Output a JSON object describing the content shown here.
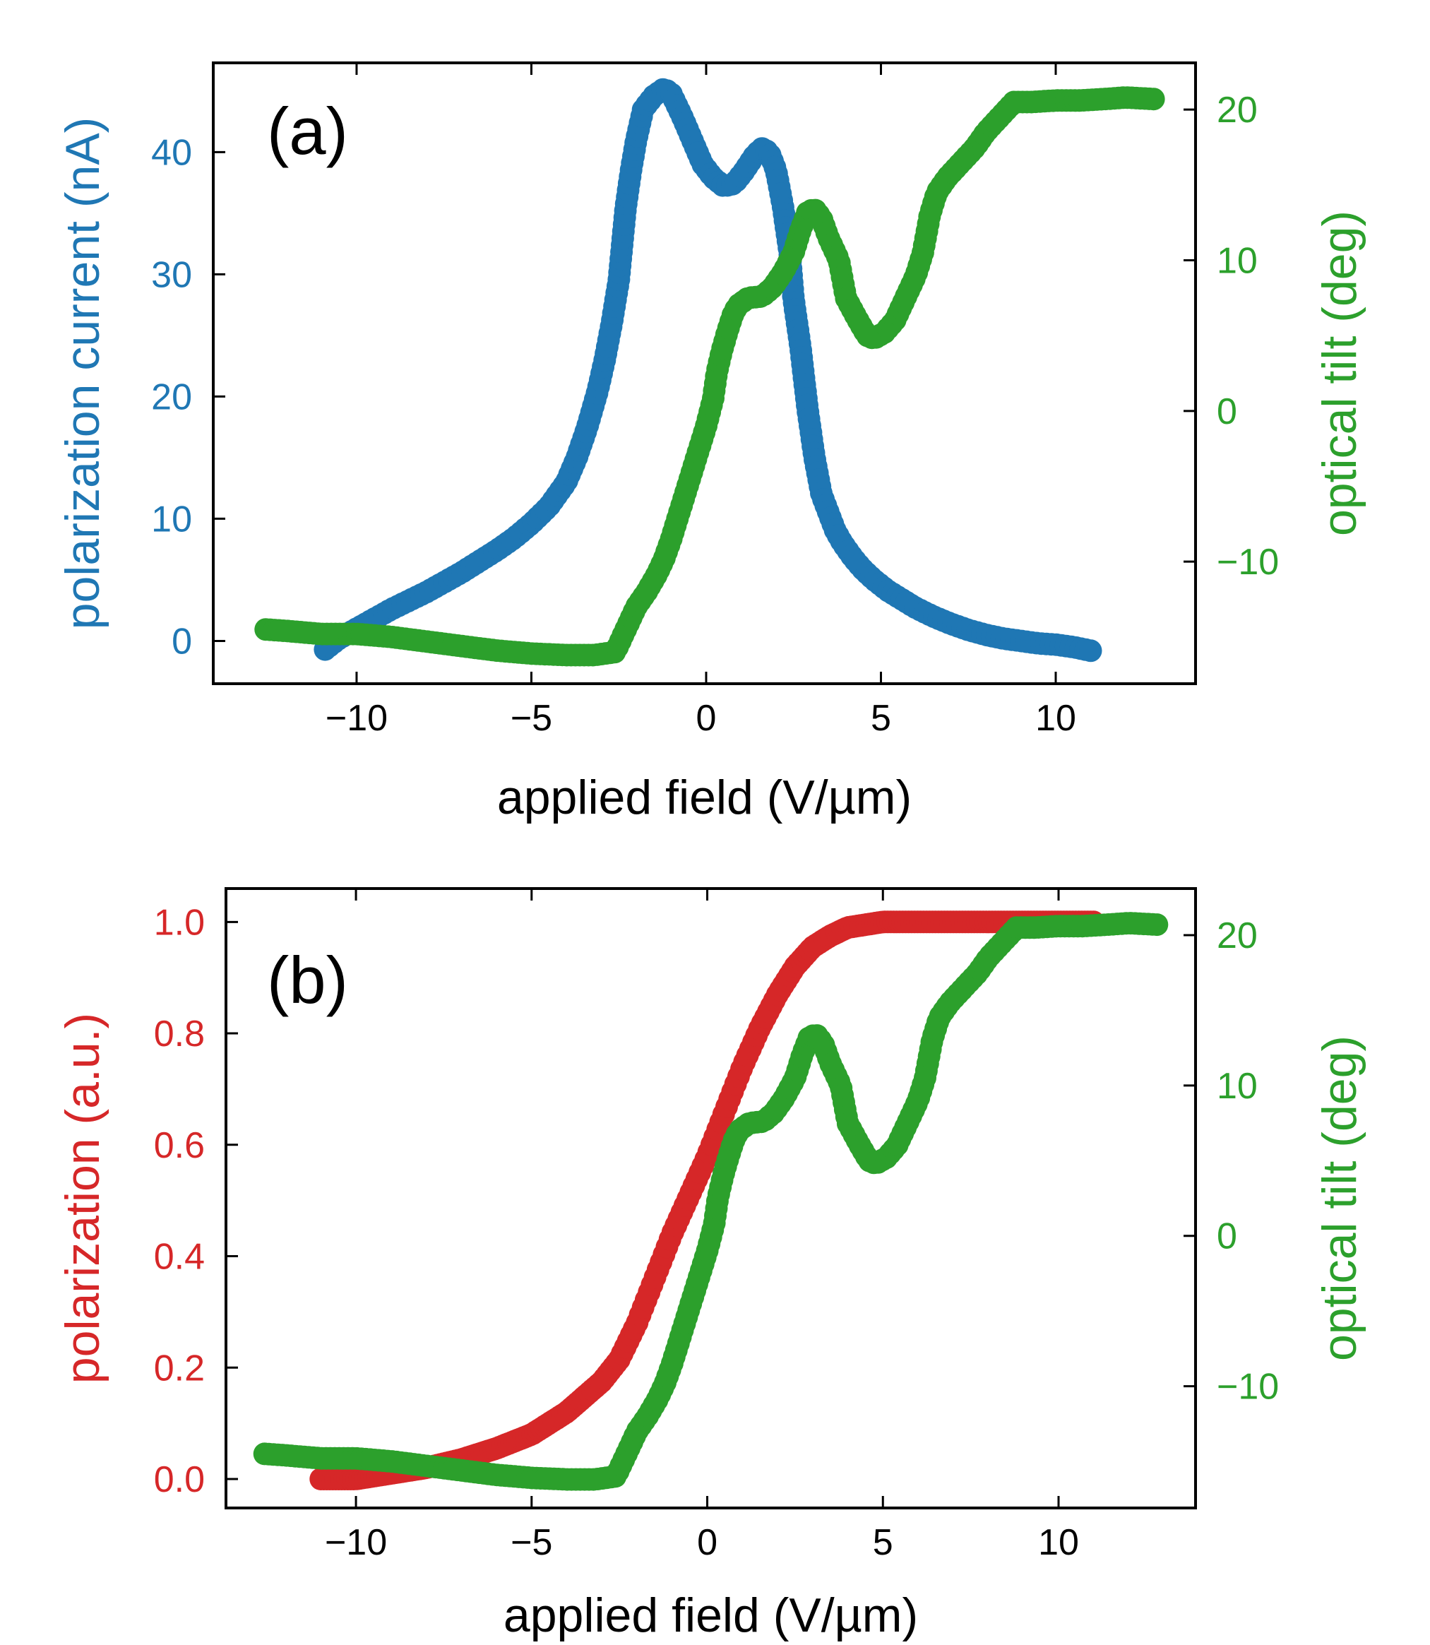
{
  "chart_data": [
    {
      "type": "scatter",
      "panel_label": "(a)",
      "xlabel": "applied field (V/µm)",
      "xlim": [
        -14.1,
        14.0
      ],
      "xticks": [
        -10,
        -5,
        0,
        5,
        10
      ],
      "xtick_labels": [
        "−10",
        "−5",
        "0",
        "5",
        "10"
      ],
      "left_axis": {
        "label": "polarization current (nA)",
        "color": "#1f77b4",
        "ylim": [
          -3.5,
          47.3
        ],
        "ticks": [
          0,
          10,
          20,
          30,
          40
        ],
        "tick_labels": [
          "0",
          "10",
          "20",
          "30",
          "40"
        ]
      },
      "right_axis": {
        "label": "optical tilt (deg)",
        "color": "#2ca02c",
        "ylim": [
          -18.1,
          23.1
        ],
        "ticks": [
          -10,
          0,
          10,
          20
        ],
        "tick_labels": [
          "−10",
          "0",
          "10",
          "20"
        ]
      },
      "series": [
        {
          "axis": "left",
          "color": "#1f77b4",
          "points": [
            [
              -10.9,
              -0.7
            ],
            [
              -10.5,
              0.2
            ],
            [
              -10,
              1.0
            ],
            [
              -9.5,
              1.8
            ],
            [
              -9,
              2.6
            ],
            [
              -8.5,
              3.3
            ],
            [
              -8,
              4.0
            ],
            [
              -7.5,
              4.8
            ],
            [
              -7,
              5.6
            ],
            [
              -6.5,
              6.5
            ],
            [
              -6,
              7.4
            ],
            [
              -5.5,
              8.4
            ],
            [
              -5,
              9.6
            ],
            [
              -4.5,
              11.0
            ],
            [
              -4,
              13.0
            ],
            [
              -3.7,
              15.0
            ],
            [
              -3.4,
              17.5
            ],
            [
              -3.1,
              20.5
            ],
            [
              -2.9,
              23.0
            ],
            [
              -2.7,
              26.0
            ],
            [
              -2.5,
              29.5
            ],
            [
              -2.4,
              32.5
            ],
            [
              -2.3,
              35.5
            ],
            [
              -2.15,
              38.5
            ],
            [
              -2.0,
              41.0
            ],
            [
              -1.8,
              43.5
            ],
            [
              -1.5,
              44.6
            ],
            [
              -1.2,
              45.2
            ],
            [
              -1.0,
              44.8
            ],
            [
              -0.7,
              43.0
            ],
            [
              -0.4,
              41.0
            ],
            [
              -0.1,
              39.0
            ],
            [
              0.2,
              37.9
            ],
            [
              0.5,
              37.2
            ],
            [
              0.8,
              37.4
            ],
            [
              1.1,
              38.5
            ],
            [
              1.4,
              39.8
            ],
            [
              1.6,
              40.3
            ],
            [
              1.8,
              40.0
            ],
            [
              2.0,
              38.5
            ],
            [
              2.2,
              35.5
            ],
            [
              2.4,
              31.5
            ],
            [
              2.5,
              28.0
            ],
            [
              2.6,
              26.0
            ],
            [
              2.7,
              24.0
            ],
            [
              2.8,
              21.5
            ],
            [
              2.9,
              19.0
            ],
            [
              3.0,
              17.0
            ],
            [
              3.1,
              15.0
            ],
            [
              3.2,
              13.5
            ],
            [
              3.3,
              12.0
            ],
            [
              3.5,
              10.5
            ],
            [
              3.7,
              9.0
            ],
            [
              3.9,
              8.0
            ],
            [
              4.2,
              6.8
            ],
            [
              4.5,
              5.8
            ],
            [
              4.8,
              5.0
            ],
            [
              5.2,
              4.1
            ],
            [
              5.6,
              3.4
            ],
            [
              6,
              2.7
            ],
            [
              6.5,
              2.0
            ],
            [
              7,
              1.4
            ],
            [
              7.5,
              0.9
            ],
            [
              8,
              0.5
            ],
            [
              8.5,
              0.2
            ],
            [
              9,
              0.0
            ],
            [
              9.5,
              -0.2
            ],
            [
              10,
              -0.3
            ],
            [
              10.5,
              -0.5
            ],
            [
              11,
              -0.8
            ]
          ]
        },
        {
          "axis": "right",
          "color": "#2ca02c",
          "points": [
            [
              -12.6,
              -14.5
            ],
            [
              -12,
              -14.6
            ],
            [
              -11,
              -14.8
            ],
            [
              -10,
              -14.8
            ],
            [
              -9,
              -15.0
            ],
            [
              -8,
              -15.3
            ],
            [
              -7,
              -15.6
            ],
            [
              -6,
              -15.9
            ],
            [
              -5,
              -16.1
            ],
            [
              -4,
              -16.2
            ],
            [
              -3.2,
              -16.2
            ],
            [
              -2.6,
              -16.0
            ],
            [
              -2.4,
              -15.0
            ],
            [
              -2.2,
              -14.0
            ],
            [
              -2.0,
              -13.0
            ],
            [
              -1.7,
              -12.0
            ],
            [
              -1.4,
              -10.8
            ],
            [
              -1.2,
              -9.8
            ],
            [
              -1.0,
              -8.5
            ],
            [
              -0.8,
              -7.0
            ],
            [
              -0.6,
              -5.5
            ],
            [
              -0.4,
              -4.0
            ],
            [
              -0.2,
              -2.5
            ],
            [
              0.0,
              -1.0
            ],
            [
              0.2,
              0.8
            ],
            [
              0.3,
              2.5
            ],
            [
              0.45,
              4.0
            ],
            [
              0.6,
              5.2
            ],
            [
              0.75,
              6.3
            ],
            [
              0.9,
              7.0
            ],
            [
              1.2,
              7.5
            ],
            [
              1.6,
              7.6
            ],
            [
              1.9,
              8.2
            ],
            [
              2.2,
              9.2
            ],
            [
              2.5,
              10.5
            ],
            [
              2.7,
              12.0
            ],
            [
              2.9,
              13.2
            ],
            [
              3.1,
              13.4
            ],
            [
              3.3,
              12.8
            ],
            [
              3.5,
              11.5
            ],
            [
              3.8,
              10.0
            ],
            [
              4.0,
              7.5
            ],
            [
              4.3,
              6.2
            ],
            [
              4.6,
              5.0
            ],
            [
              4.8,
              4.8
            ],
            [
              5.1,
              5.2
            ],
            [
              5.4,
              6.0
            ],
            [
              5.7,
              7.5
            ],
            [
              6.0,
              9.0
            ],
            [
              6.2,
              10.5
            ],
            [
              6.4,
              13.0
            ],
            [
              6.6,
              14.5
            ],
            [
              6.9,
              15.5
            ],
            [
              7.3,
              16.5
            ],
            [
              7.7,
              17.5
            ],
            [
              8.0,
              18.5
            ],
            [
              8.4,
              19.5
            ],
            [
              8.8,
              20.5
            ],
            [
              9.3,
              20.5
            ],
            [
              10,
              20.6
            ],
            [
              10.7,
              20.6
            ],
            [
              11.4,
              20.7
            ],
            [
              12,
              20.8
            ],
            [
              12.8,
              20.7
            ]
          ]
        }
      ]
    },
    {
      "type": "scatter",
      "panel_label": "(b)",
      "xlabel": "applied field (V/µm)",
      "xlim": [
        -13.7,
        13.9
      ],
      "xticks": [
        -10,
        -5,
        0,
        5,
        10
      ],
      "xtick_labels": [
        "−10",
        "−5",
        "0",
        "5",
        "10"
      ],
      "left_axis": {
        "label": "polarization (a.u.)",
        "color": "#d62728",
        "ylim": [
          -0.052,
          1.06
        ],
        "ticks": [
          0.0,
          0.2,
          0.4,
          0.6,
          0.8,
          1.0
        ],
        "tick_labels": [
          "0.0",
          "0.2",
          "0.4",
          "0.6",
          "0.8",
          "1.0"
        ]
      },
      "right_axis": {
        "label": "optical tilt (deg)",
        "color": "#2ca02c",
        "ylim": [
          -18.1,
          23.1
        ],
        "ticks": [
          -10,
          0,
          10,
          20
        ],
        "tick_labels": [
          "−10",
          "0",
          "10",
          "20"
        ]
      },
      "series": [
        {
          "axis": "left",
          "color": "#d62728",
          "points": [
            [
              -11,
              0.0
            ],
            [
              -10,
              0.0
            ],
            [
              -9,
              0.01
            ],
            [
              -8,
              0.02
            ],
            [
              -7,
              0.035
            ],
            [
              -6,
              0.055
            ],
            [
              -5,
              0.08
            ],
            [
              -4,
              0.12
            ],
            [
              -3,
              0.175
            ],
            [
              -2.5,
              0.215
            ],
            [
              -2,
              0.28
            ],
            [
              -1.5,
              0.36
            ],
            [
              -1,
              0.44
            ],
            [
              -0.5,
              0.51
            ],
            [
              0,
              0.58
            ],
            [
              0.5,
              0.66
            ],
            [
              1,
              0.74
            ],
            [
              1.5,
              0.81
            ],
            [
              2,
              0.87
            ],
            [
              2.5,
              0.92
            ],
            [
              3,
              0.955
            ],
            [
              3.5,
              0.975
            ],
            [
              4,
              0.99
            ],
            [
              5,
              1.0
            ],
            [
              6,
              1.0
            ],
            [
              8,
              1.0
            ],
            [
              10,
              1.0
            ],
            [
              11,
              1.0
            ]
          ]
        },
        {
          "axis": "right",
          "color": "#2ca02c",
          "points": [
            [
              -12.6,
              -14.5
            ],
            [
              -12,
              -14.6
            ],
            [
              -11,
              -14.8
            ],
            [
              -10,
              -14.8
            ],
            [
              -9,
              -15.0
            ],
            [
              -8,
              -15.3
            ],
            [
              -7,
              -15.6
            ],
            [
              -6,
              -15.9
            ],
            [
              -5,
              -16.1
            ],
            [
              -4,
              -16.2
            ],
            [
              -3.2,
              -16.2
            ],
            [
              -2.6,
              -16.0
            ],
            [
              -2.4,
              -15.0
            ],
            [
              -2.2,
              -14.0
            ],
            [
              -2.0,
              -13.0
            ],
            [
              -1.7,
              -12.0
            ],
            [
              -1.4,
              -10.8
            ],
            [
              -1.2,
              -9.8
            ],
            [
              -1.0,
              -8.5
            ],
            [
              -0.8,
              -7.0
            ],
            [
              -0.6,
              -5.5
            ],
            [
              -0.4,
              -4.0
            ],
            [
              -0.2,
              -2.5
            ],
            [
              0.0,
              -1.0
            ],
            [
              0.2,
              0.8
            ],
            [
              0.3,
              2.5
            ],
            [
              0.45,
              4.0
            ],
            [
              0.6,
              5.2
            ],
            [
              0.75,
              6.3
            ],
            [
              0.9,
              7.0
            ],
            [
              1.2,
              7.5
            ],
            [
              1.6,
              7.6
            ],
            [
              1.9,
              8.2
            ],
            [
              2.2,
              9.2
            ],
            [
              2.5,
              10.5
            ],
            [
              2.7,
              12.0
            ],
            [
              2.9,
              13.2
            ],
            [
              3.1,
              13.4
            ],
            [
              3.3,
              12.8
            ],
            [
              3.5,
              11.5
            ],
            [
              3.8,
              10.0
            ],
            [
              4.0,
              7.5
            ],
            [
              4.3,
              6.2
            ],
            [
              4.6,
              5.0
            ],
            [
              4.8,
              4.8
            ],
            [
              5.1,
              5.2
            ],
            [
              5.4,
              6.0
            ],
            [
              5.7,
              7.5
            ],
            [
              6.0,
              9.0
            ],
            [
              6.2,
              10.5
            ],
            [
              6.4,
              13.0
            ],
            [
              6.6,
              14.5
            ],
            [
              6.9,
              15.5
            ],
            [
              7.3,
              16.5
            ],
            [
              7.7,
              17.5
            ],
            [
              8.0,
              18.5
            ],
            [
              8.4,
              19.5
            ],
            [
              8.8,
              20.5
            ],
            [
              9.3,
              20.5
            ],
            [
              10,
              20.6
            ],
            [
              10.7,
              20.6
            ],
            [
              11.4,
              20.7
            ],
            [
              12,
              20.8
            ],
            [
              12.8,
              20.7
            ]
          ]
        }
      ]
    }
  ]
}
